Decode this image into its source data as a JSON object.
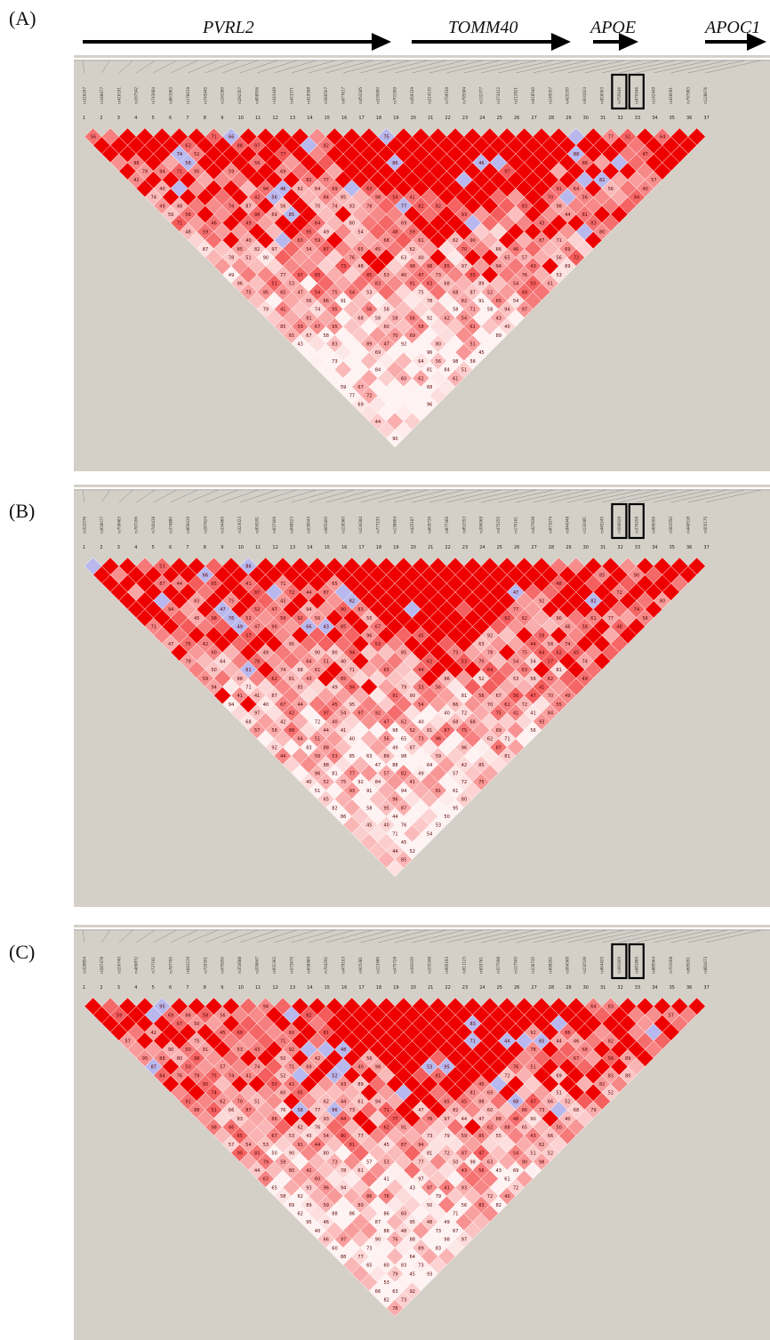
{
  "panels": [
    {
      "label": "(A)",
      "seed": 11
    },
    {
      "label": "(B)",
      "seed": 29
    },
    {
      "label": "(C)",
      "seed": 47
    }
  ],
  "genes": [
    "PVRL2",
    "TOMM40",
    "APOE",
    "APOC1"
  ],
  "snp_count": 37,
  "highlighted_snp_indices": [
    32,
    33
  ],
  "colors": {
    "strong_ld": "#ee0000",
    "weak_ld": "#ffffff",
    "uninformative": "#b8b8ee",
    "background": "#d4d0c8",
    "highlight_box": "#000000"
  }
}
